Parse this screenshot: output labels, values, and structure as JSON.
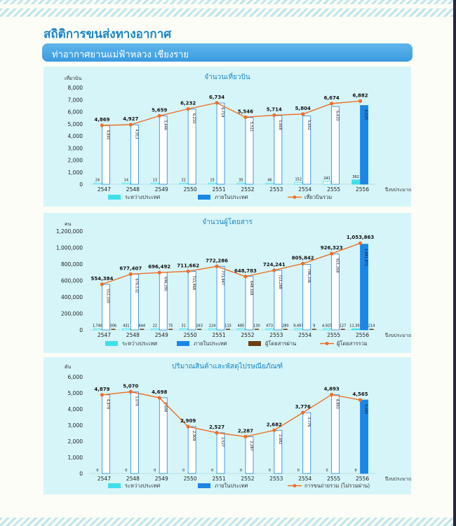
{
  "header": {
    "title": "สถิติการขนส่งทางอากาศ",
    "subtitle": "ท่าอากาศยานแม่ฟ้าหลวง เชียงราย"
  },
  "colors": {
    "international": "#3fe0ea",
    "domestic": "#1a86e8",
    "transit": "#6b3f10",
    "total_line": "#ee6f26",
    "panel": "#d6f5f9"
  },
  "chart_data": [
    {
      "type": "bar",
      "title": "จำนวนเที่ยวบิน",
      "ylabel": "เที่ยวบิน",
      "xlabel": "ปีงบประมาณ",
      "categories": [
        "2547",
        "2548",
        "2549",
        "2550",
        "2551",
        "2552",
        "2553",
        "2554",
        "2555",
        "2556"
      ],
      "ylim": [
        0,
        8000
      ],
      "yticks": [
        0,
        1000,
        2000,
        3000,
        4000,
        5000,
        6000,
        7000,
        8000
      ],
      "ytick_labels": [
        "0",
        "1,000",
        "2,000",
        "3,000",
        "4,000",
        "5,000",
        "6,000",
        "7,000",
        "8,000"
      ],
      "series": [
        {
          "name": "ระหว่างประเทศ",
          "kind": "bar",
          "values": [
            24,
            14,
            13,
            22,
            15,
            35,
            46,
            152,
            241,
            362
          ],
          "labels": [
            "24",
            "14",
            "13",
            "22",
            "15",
            "35",
            "46",
            "152",
            "241",
            "362"
          ]
        },
        {
          "name": "ภายในประเทศ",
          "kind": "bar",
          "values": [
            4845,
            4913,
            5646,
            6210,
            6719,
            5511,
            5668,
            5652,
            6433,
            6520
          ],
          "labels": [
            "4,845",
            "4,913",
            "5,646",
            "6,210",
            "6,719",
            "5,511",
            "5,668",
            "5,652",
            "6,433",
            "6,520"
          ]
        },
        {
          "name": "เที่ยวบินรวม",
          "kind": "line",
          "values": [
            4869,
            4927,
            5659,
            6232,
            6734,
            5546,
            5714,
            5804,
            6674,
            6882
          ],
          "labels": [
            "4,869",
            "4,927",
            "5,659",
            "6,232",
            "6,734",
            "5,546",
            "5,714",
            "5,804",
            "6,674",
            "6,882"
          ]
        }
      ],
      "legend": "bottom"
    },
    {
      "type": "bar",
      "title": "จำนวนผู้โดยสาร",
      "ylabel": "คน",
      "xlabel": "ปีงบประมาณ",
      "categories": [
        "2547",
        "2548",
        "2549",
        "2550",
        "2551",
        "2552",
        "2553",
        "2554",
        "2555",
        "2556"
      ],
      "ylim": [
        0,
        1200000
      ],
      "yticks": [
        0,
        200000,
        400000,
        600000,
        800000,
        1000000,
        1200000
      ],
      "ytick_labels": [
        "0",
        "200,000",
        "400,000",
        "600,000",
        "800,000",
        "1,000,000",
        "1,200,000"
      ],
      "series": [
        {
          "name": "ระหว่างประเทศ",
          "kind": "bar",
          "values": [
            1748,
            431,
            22,
            31,
            224,
            485,
            673,
            9497,
            4925,
            11308
          ],
          "labels": [
            "1,748",
            "431",
            "22",
            "31",
            "224",
            "485",
            "673",
            "9,497",
            "4,925",
            "11,308"
          ]
        },
        {
          "name": "ภายในประเทศ",
          "kind": "bar",
          "values": [
            552330,
            676532,
            696395,
            711468,
            771947,
            648168,
            723288,
            796336,
            921268,
            1041871
          ],
          "labels": [
            "552,330",
            "676,532",
            "696,395",
            "711,468",
            "771,947",
            "648,168",
            "723,288",
            "796,336",
            "921,268",
            "1,041,871"
          ]
        },
        {
          "name": "ผู้โดยสารผ่าน",
          "kind": "bar",
          "values": [
            306,
            444,
            75,
            163,
            115,
            130,
            280,
            9,
            127,
            214
          ],
          "labels": [
            "306",
            "444",
            "75",
            "163",
            "115",
            "130",
            "280",
            "9",
            "127",
            "214"
          ]
        },
        {
          "name": "ผู้โดยสารรวม",
          "kind": "line",
          "values": [
            554384,
            677407,
            696492,
            711662,
            772286,
            648783,
            724241,
            805842,
            926323,
            1053863
          ],
          "labels": [
            "554,384",
            "677,407",
            "696,492",
            "711,662",
            "772,286",
            "648,783",
            "724,241",
            "805,842",
            "926,323",
            "1,053,863"
          ]
        }
      ],
      "legend": "bottom"
    },
    {
      "type": "bar",
      "title": "ปริมาณสินค้าและพัสดุไปรษณียภัณฑ์",
      "ylabel": "ตัน",
      "xlabel": "ปีงบประมาณ",
      "categories": [
        "2547",
        "2548",
        "2549",
        "2550",
        "2551",
        "2552",
        "2553",
        "2554",
        "2555",
        "2556"
      ],
      "ylim": [
        0,
        6000
      ],
      "yticks": [
        0,
        1000,
        2000,
        3000,
        4000,
        5000,
        6000
      ],
      "ytick_labels": [
        "0",
        "1,000",
        "2,000",
        "3,000",
        "4,000",
        "5,000",
        "6,000"
      ],
      "series": [
        {
          "name": "ระหว่างประเทศ",
          "kind": "bar",
          "values": [
            0,
            0,
            0,
            0,
            0,
            0,
            0,
            0,
            0,
            0
          ],
          "labels": [
            "0",
            "0",
            "0",
            "0",
            "0",
            "0",
            "0",
            "0",
            "0",
            "0"
          ]
        },
        {
          "name": "ภายในประเทศ",
          "kind": "bar",
          "values": [
            4879,
            5070,
            4698,
            2909,
            2527,
            2287,
            2682,
            3776,
            4893,
            4565
          ],
          "labels": [
            "4,879",
            "5,070",
            "4,698",
            "2,909",
            "2,527",
            "2,287",
            "2,682",
            "3,776",
            "4,893",
            "4,565"
          ]
        },
        {
          "name": "การขนถ่ายรวม (ไม่รวมผ่าน)",
          "kind": "line",
          "values": [
            4879,
            5070,
            4698,
            2909,
            2527,
            2287,
            2682,
            3776,
            4893,
            4565
          ],
          "labels": [
            "4,879",
            "5,070",
            "4,698",
            "2,909",
            "2,527",
            "2,287",
            "2,682",
            "3,776",
            "4,893",
            "4,565"
          ]
        }
      ],
      "legend": "bottom"
    }
  ]
}
